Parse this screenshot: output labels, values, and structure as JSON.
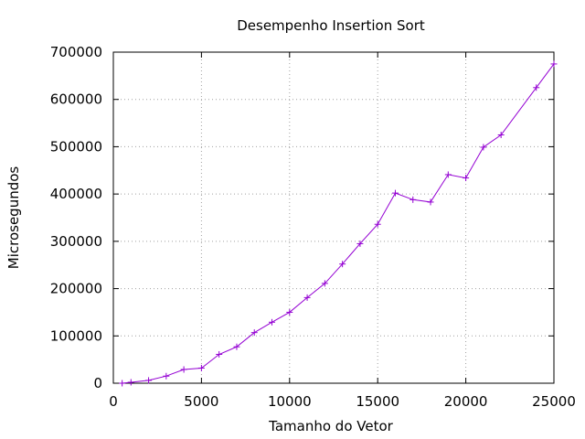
{
  "chart_data": {
    "type": "line",
    "title": "Desempenho Insertion Sort",
    "xlabel": "Tamanho do Vetor",
    "ylabel": "Microsegundos",
    "xlim": [
      0,
      25000
    ],
    "ylim": [
      0,
      700000
    ],
    "xticks": [
      0,
      5000,
      10000,
      15000,
      20000,
      25000
    ],
    "yticks": [
      0,
      100000,
      200000,
      300000,
      400000,
      500000,
      600000,
      700000
    ],
    "grid": true,
    "legend": "none",
    "series_color": "#9400d3",
    "series": [
      {
        "marker": "plus",
        "x": [
          500,
          1000,
          2000,
          3000,
          4000,
          5000,
          6000,
          7000,
          8000,
          9000,
          10000,
          11000,
          12000,
          13000,
          14000,
          15000,
          16000,
          17000,
          18000,
          19000,
          20000,
          21000,
          22000,
          24000,
          25000
        ],
        "y": [
          0,
          2000,
          6000,
          15000,
          29000,
          32000,
          61000,
          77000,
          107000,
          129000,
          150000,
          181000,
          211000,
          252000,
          295000,
          336000,
          402000,
          388000,
          383000,
          441000,
          434000,
          499000,
          525000,
          625000,
          675000
        ]
      }
    ]
  }
}
